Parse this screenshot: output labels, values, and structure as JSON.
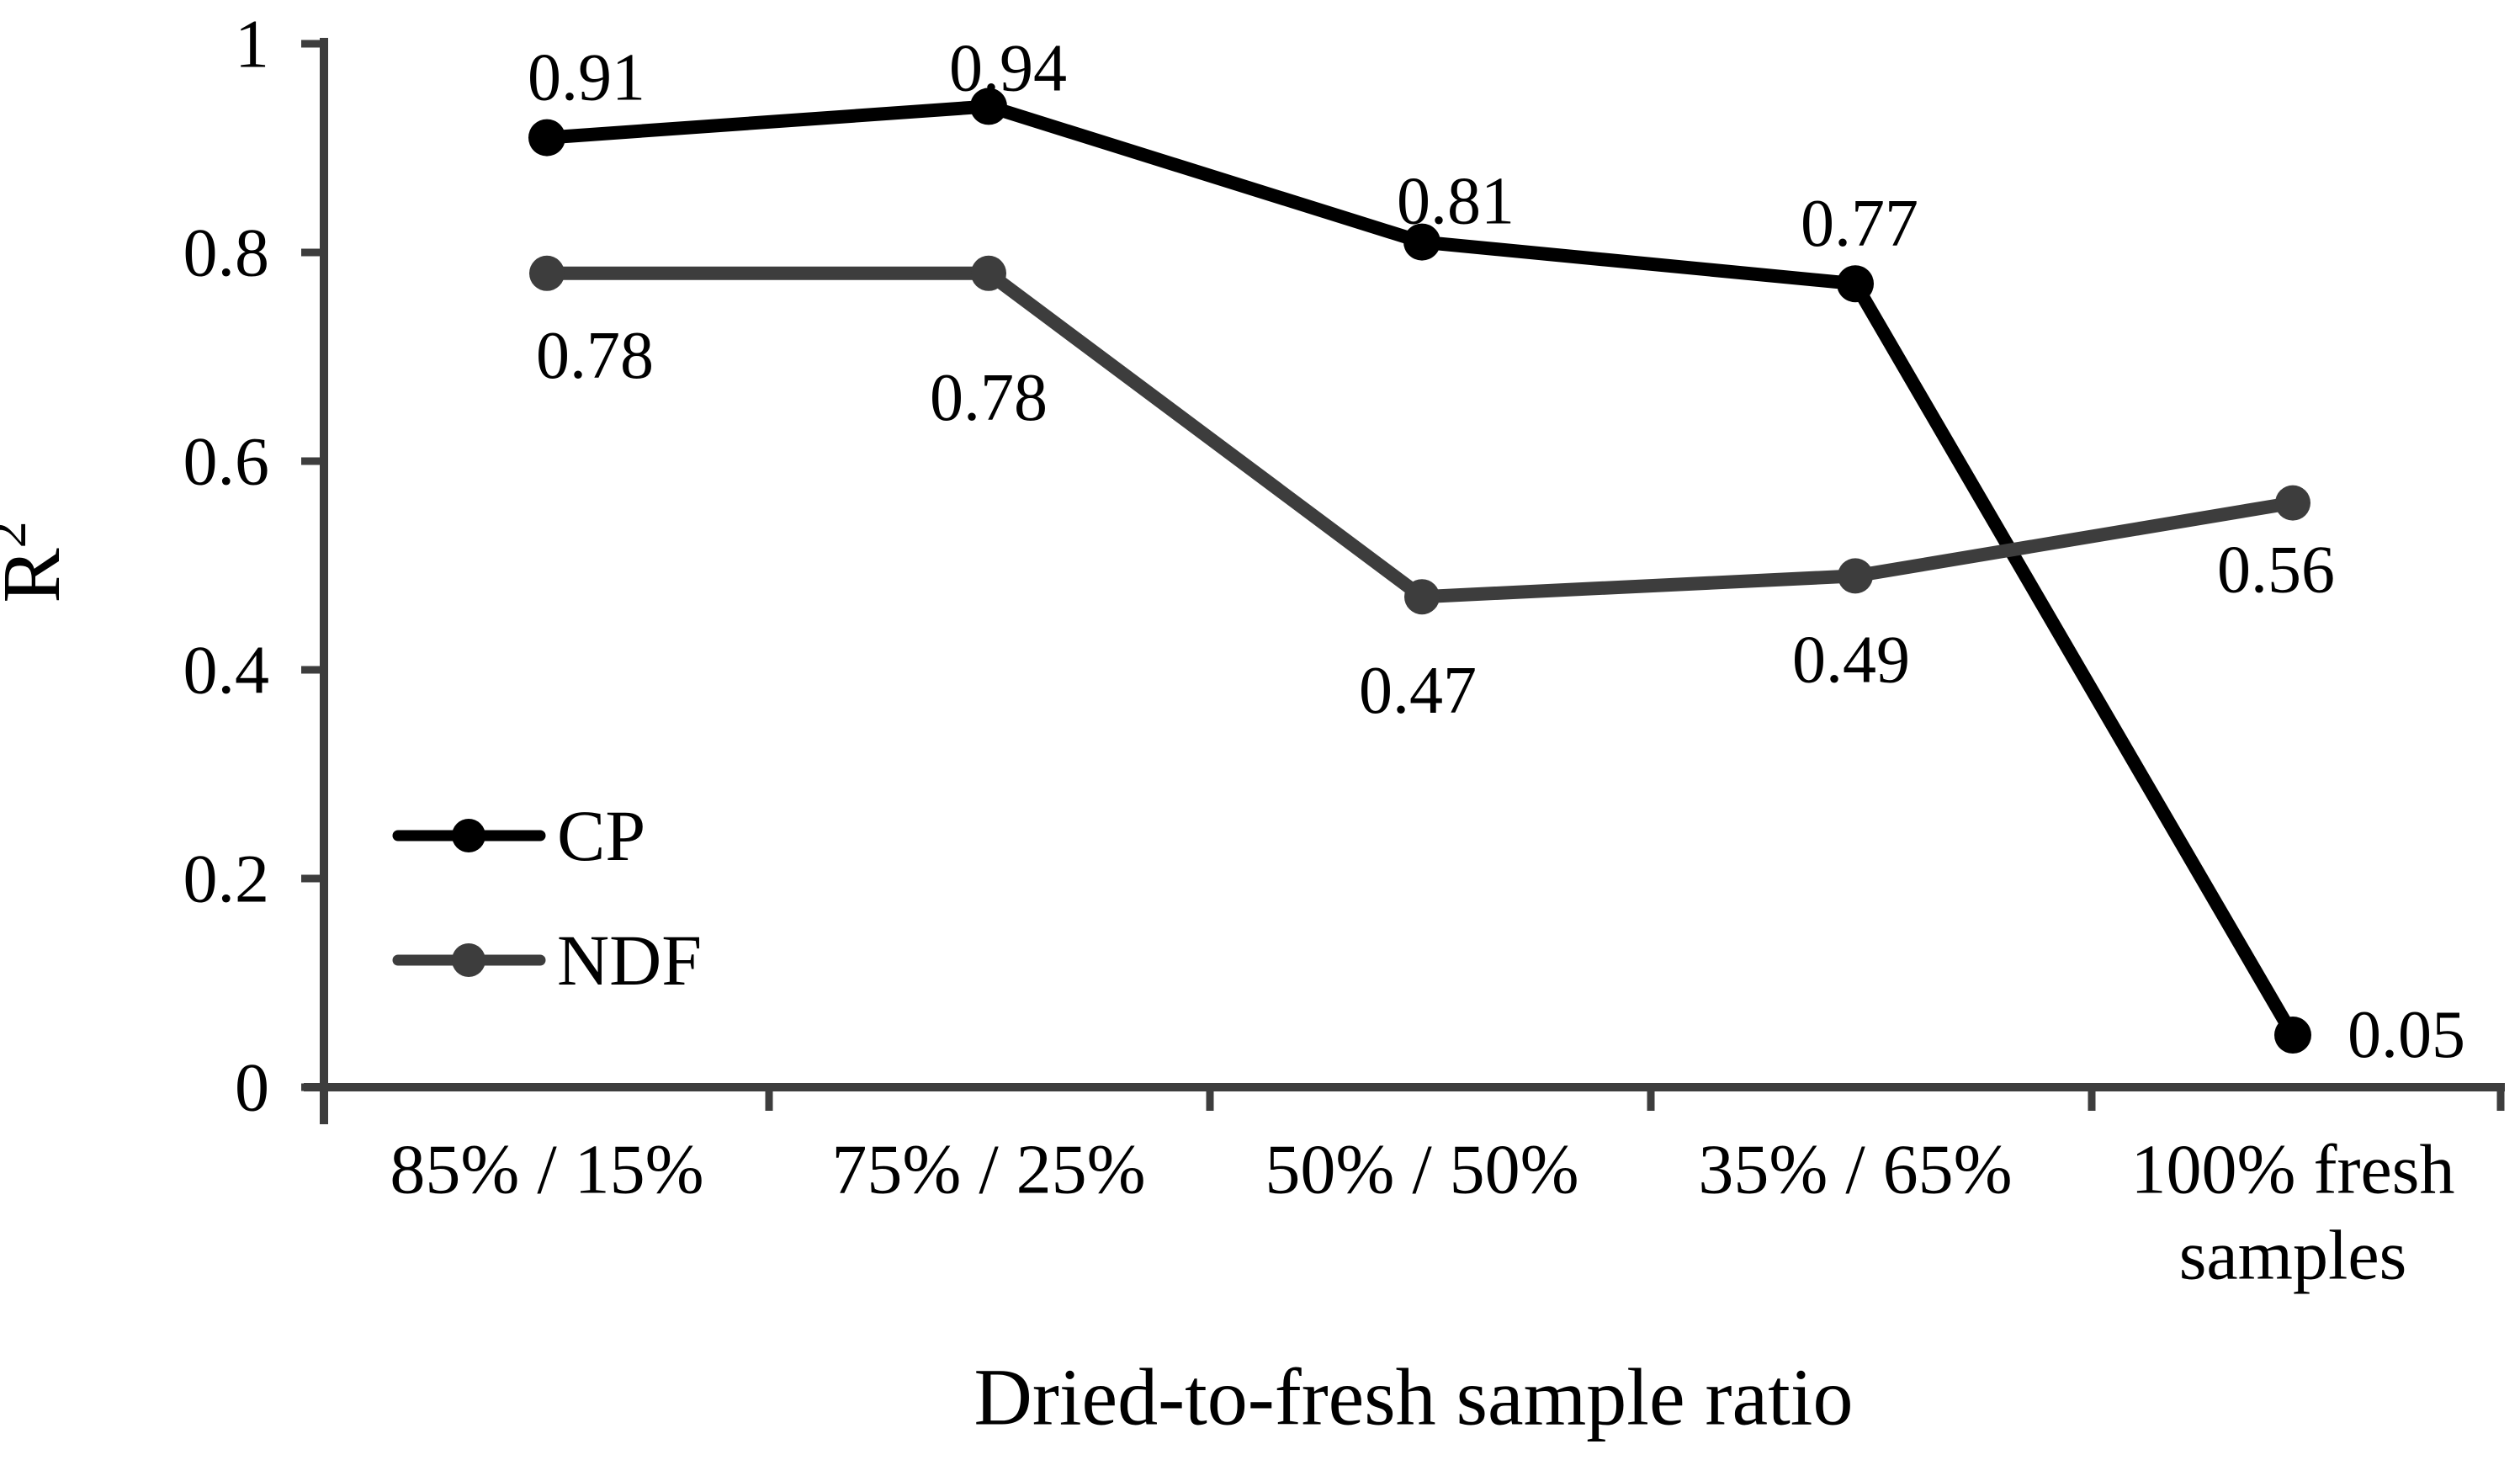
{
  "chart_data": {
    "type": "line",
    "title": "",
    "xlabel": "Dried-to-fresh sample ratio",
    "ylabel": "R²",
    "ylabel_base": "R",
    "ylabel_superscript": "2",
    "categories": [
      "85% / 15%",
      "75% / 25%",
      "50% / 50%",
      "35% / 65%",
      "100% fresh\nsamples"
    ],
    "series": [
      {
        "name": "CP",
        "color": "#000000",
        "values": [
          0.91,
          0.94,
          0.81,
          0.77,
          0.05
        ],
        "point_labels": [
          "0.91",
          "0.94",
          "0.81",
          "0.77",
          "0.05"
        ]
      },
      {
        "name": "NDF",
        "color": "#3d3d3d",
        "values": [
          0.78,
          0.78,
          0.47,
          0.49,
          0.56
        ],
        "point_labels": [
          "0.78",
          "0.78",
          "0.47",
          "0.49",
          "0.56"
        ]
      }
    ],
    "ylim": [
      0,
      1
    ],
    "yticks": [
      {
        "value": 1,
        "label": "1"
      },
      {
        "value": 0.8,
        "label": "0.8"
      },
      {
        "value": 0.6,
        "label": "0.6"
      },
      {
        "value": 0.4,
        "label": "0.4"
      },
      {
        "value": 0.2,
        "label": "0.2"
      },
      {
        "value": 0,
        "label": "0"
      }
    ],
    "grid": false,
    "legend_position": "lower-left",
    "legend_entries": [
      "CP",
      "NDF"
    ],
    "axis_color": "#3d3d3d",
    "label_color": "#000000",
    "background_color": "#ffffff"
  }
}
